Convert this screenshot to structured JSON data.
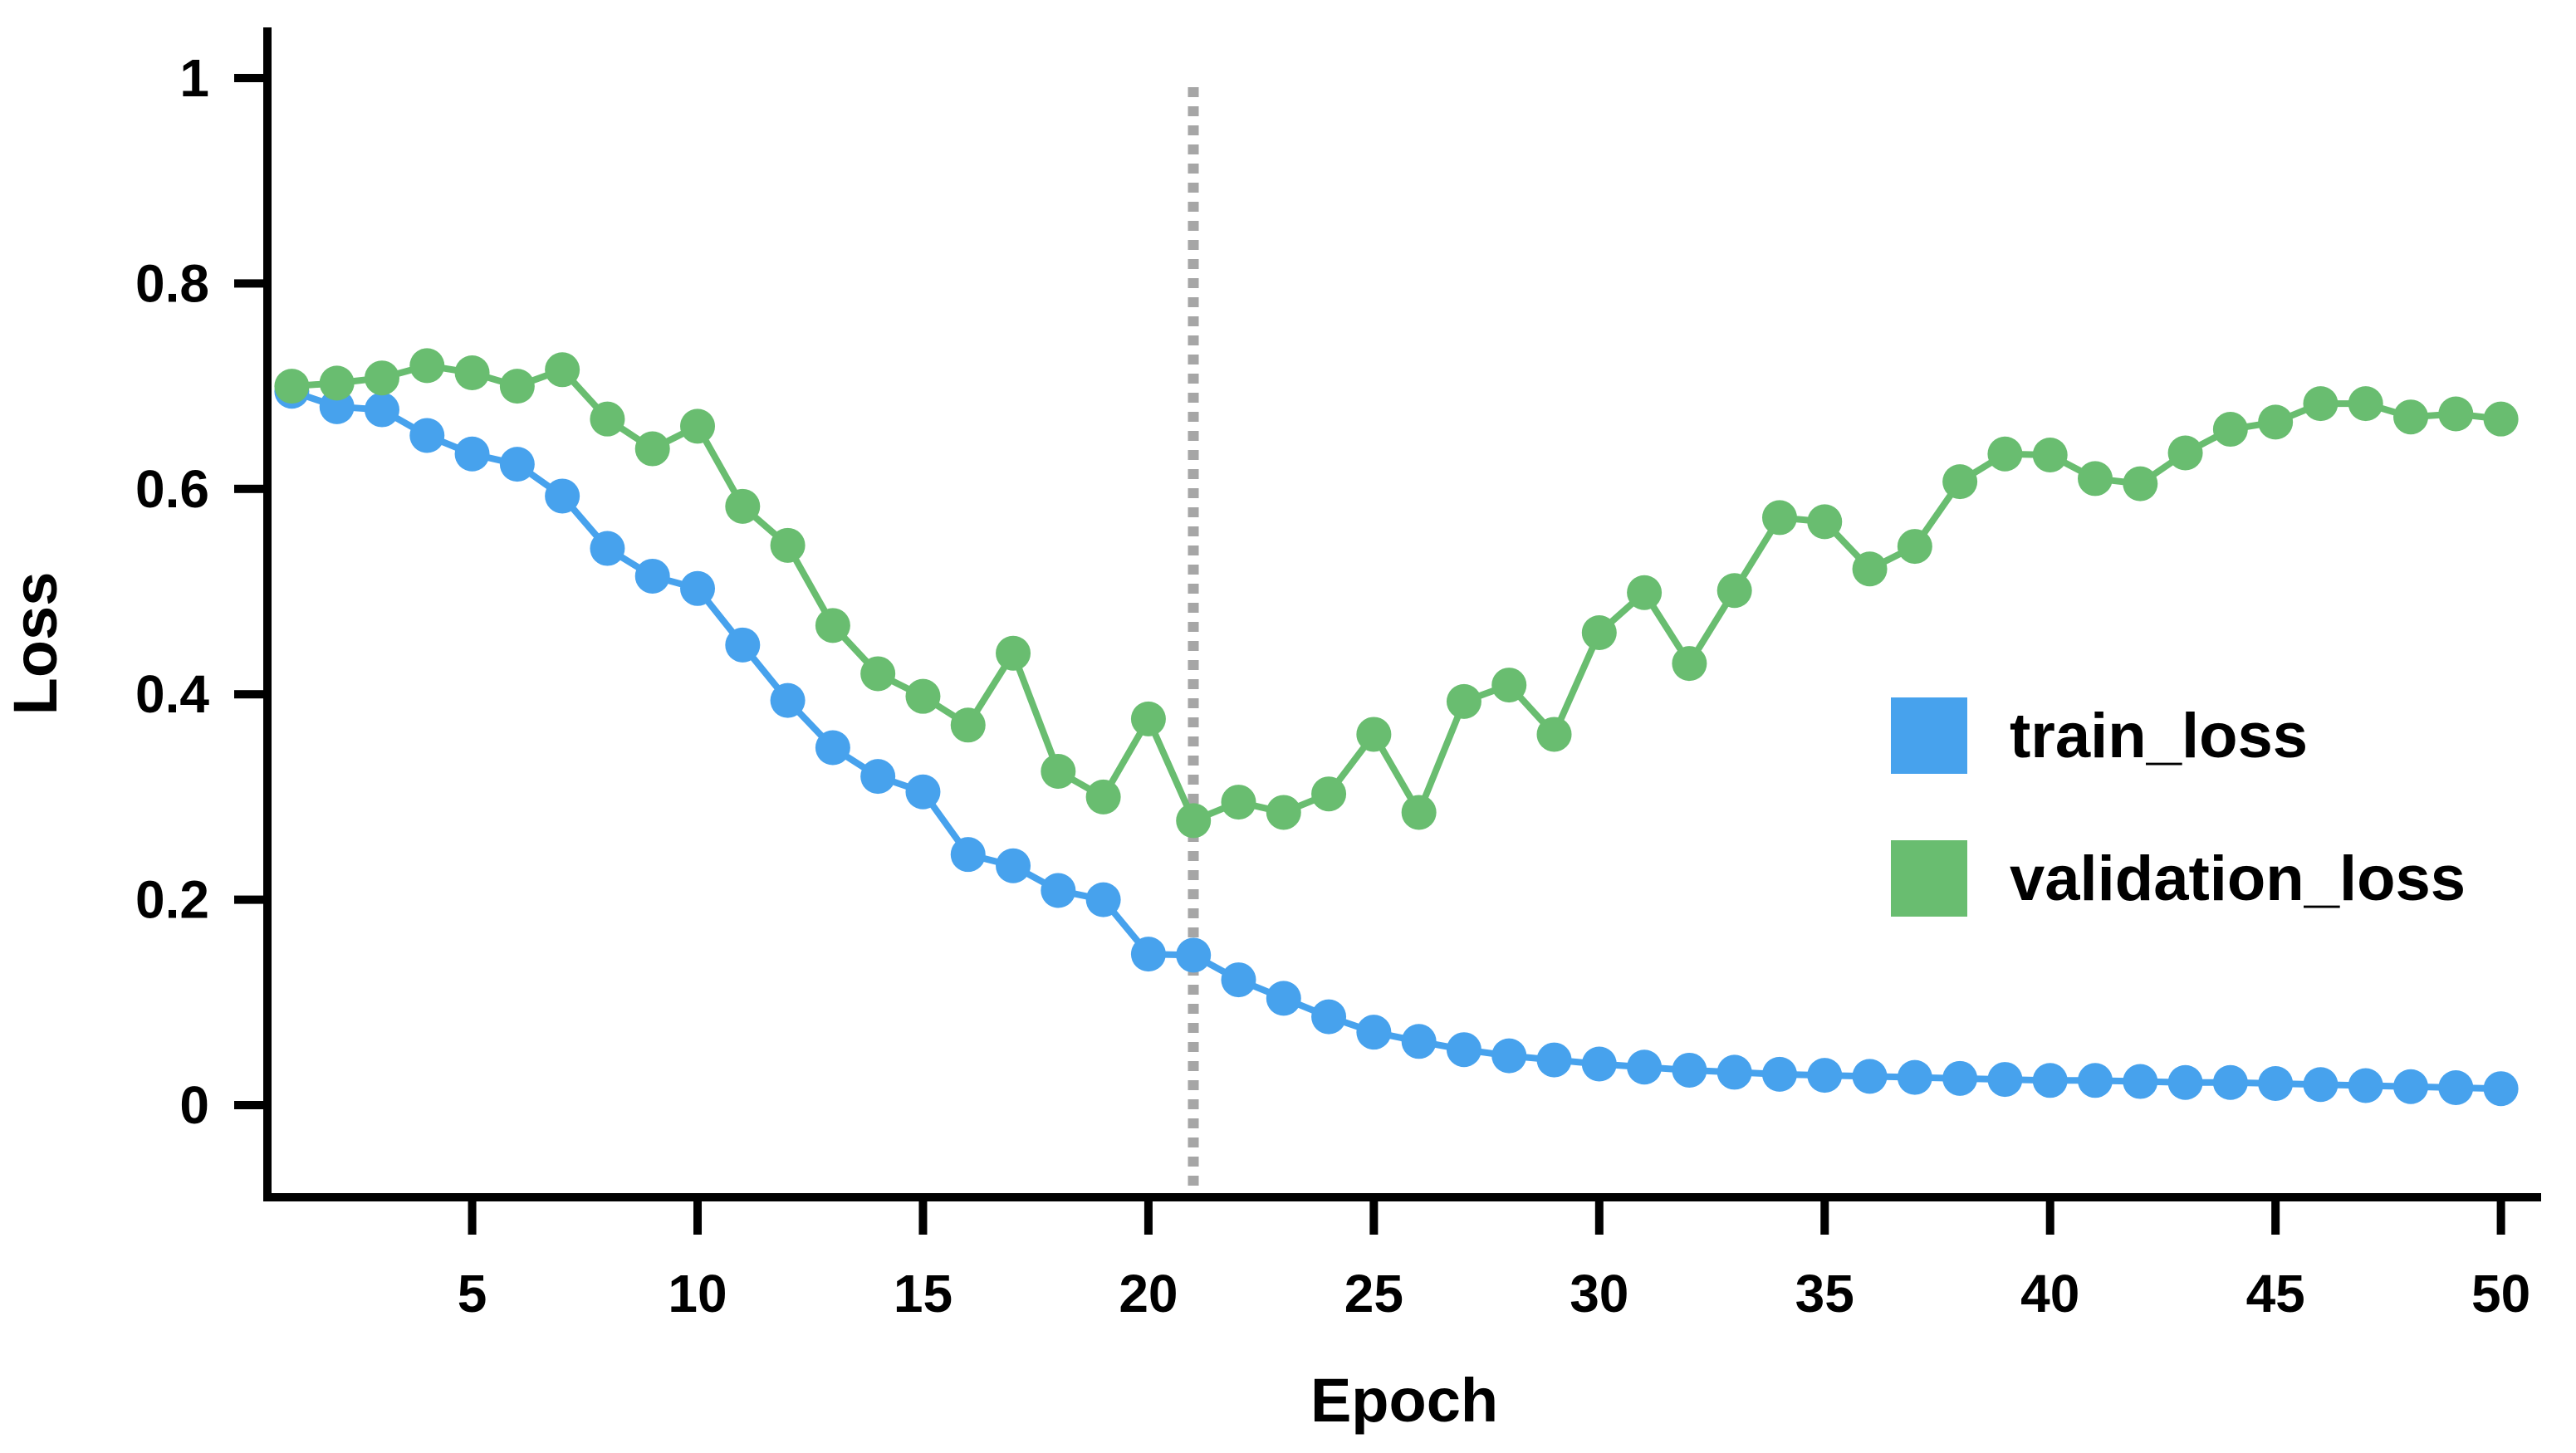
{
  "chart_data": {
    "type": "line",
    "title": "",
    "xlabel": "Epoch",
    "ylabel": "Loss",
    "x": [
      1,
      2,
      3,
      4,
      5,
      6,
      7,
      8,
      9,
      10,
      11,
      12,
      13,
      14,
      15,
      16,
      17,
      18,
      19,
      20,
      21,
      22,
      23,
      24,
      25,
      26,
      27,
      28,
      29,
      30,
      31,
      32,
      33,
      34,
      35,
      36,
      37,
      38,
      39,
      40,
      41,
      42,
      43,
      44,
      45,
      46,
      47,
      48,
      49,
      50
    ],
    "series": [
      {
        "name": "train_loss",
        "color": "#47a2ed",
        "values": [
          0.695,
          0.68,
          0.677,
          0.652,
          0.634,
          0.624,
          0.593,
          0.542,
          0.515,
          0.503,
          0.448,
          0.394,
          0.348,
          0.32,
          0.305,
          0.244,
          0.233,
          0.209,
          0.2,
          0.147,
          0.146,
          0.122,
          0.104,
          0.086,
          0.071,
          0.062,
          0.054,
          0.048,
          0.044,
          0.04,
          0.037,
          0.034,
          0.032,
          0.03,
          0.029,
          0.028,
          0.027,
          0.026,
          0.025,
          0.024,
          0.024,
          0.023,
          0.022,
          0.022,
          0.021,
          0.02,
          0.019,
          0.018,
          0.017,
          0.016
        ]
      },
      {
        "name": "validation_loss",
        "color": "#69bd70",
        "values": [
          0.7,
          0.703,
          0.708,
          0.72,
          0.713,
          0.7,
          0.716,
          0.668,
          0.639,
          0.661,
          0.583,
          0.545,
          0.467,
          0.42,
          0.398,
          0.37,
          0.44,
          0.325,
          0.3,
          0.376,
          0.277,
          0.295,
          0.285,
          0.303,
          0.361,
          0.285,
          0.393,
          0.409,
          0.361,
          0.46,
          0.499,
          0.43,
          0.501,
          0.572,
          0.568,
          0.522,
          0.544,
          0.607,
          0.634,
          0.633,
          0.61,
          0.605,
          0.635,
          0.658,
          0.665,
          0.683,
          0.683,
          0.67,
          0.673,
          0.668
        ]
      }
    ],
    "y_ticks": [
      {
        "v": 0,
        "label": "0"
      },
      {
        "v": 0.2,
        "label": "0.2"
      },
      {
        "v": 0.4,
        "label": "0.4"
      },
      {
        "v": 0.6,
        "label": "0.6"
      },
      {
        "v": 0.8,
        "label": "0.8"
      },
      {
        "v": 1,
        "label": "1"
      }
    ],
    "x_ticks": [
      {
        "v": 5,
        "label": "5"
      },
      {
        "v": 10,
        "label": "10"
      },
      {
        "v": 15,
        "label": "15"
      },
      {
        "v": 20,
        "label": "20"
      },
      {
        "v": 25,
        "label": "25"
      },
      {
        "v": 30,
        "label": "30"
      },
      {
        "v": 35,
        "label": "35"
      },
      {
        "v": 40,
        "label": "40"
      },
      {
        "v": 45,
        "label": "45"
      },
      {
        "v": 50,
        "label": "50"
      }
    ],
    "vline": {
      "x": 21,
      "color": "#a6a6a6",
      "style": "dashed"
    },
    "xlim": [
      0.5,
      50.9
    ],
    "ylim": [
      -0.09,
      1.05
    ],
    "grid": false,
    "legend_position": "center-right",
    "legend": [
      {
        "label": "train_loss",
        "color": "#47a2ed"
      },
      {
        "label": "validation_loss",
        "color": "#69bd70"
      }
    ]
  },
  "labels": {
    "y_axis": "Loss",
    "x_axis": "Epoch",
    "legend_train": "train_loss",
    "legend_validation": "validation_loss"
  },
  "colors": {
    "train": "#47a2ed",
    "validation": "#69bd70",
    "axis": "#000000",
    "vline": "#a6a6a6",
    "background": "#ffffff"
  }
}
